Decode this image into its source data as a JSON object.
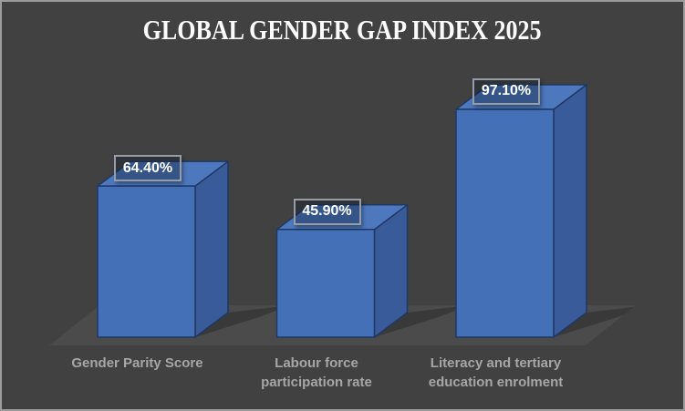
{
  "chart_data": {
    "type": "bar",
    "style": "3d-column",
    "title": "GLOBAL GENDER GAP INDEX 2025",
    "categories": [
      "Gender Parity Score",
      "Labour force participation rate",
      "Literacy and tertiary education enrolment"
    ],
    "values": [
      64.4,
      45.9,
      97.1
    ],
    "data_labels": [
      "64.40%",
      "45.90%",
      "97.10%"
    ],
    "xlabel": "",
    "ylabel": "",
    "ylim": [
      0,
      100
    ],
    "grid": false,
    "legend": "none",
    "colors": {
      "background": "#414141",
      "frame_border": "#9c9c9c",
      "title_text": "#fbfbfb",
      "bar_front": "#4470b7",
      "bar_side": "#3a5b99",
      "bar_top": "#4d78be",
      "bar_outline": "#1f3864",
      "floor": "#4b4b4b",
      "shadow": "#393939",
      "category_text": "#a6a6a6",
      "label_text": "#ffffff",
      "label_border": "#989da5",
      "label_fill": "rgba(15,25,45,0.38)"
    }
  }
}
